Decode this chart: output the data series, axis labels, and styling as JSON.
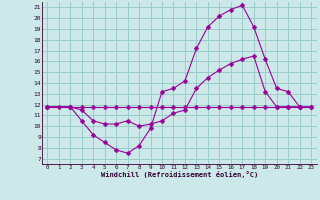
{
  "xlabel": "Windchill (Refroidissement éolien,°C)",
  "bg_color": "#cce8e8",
  "line_color": "#990099",
  "grid_color": "#99cccc",
  "xlim": [
    -0.5,
    23.5
  ],
  "ylim": [
    6.5,
    21.5
  ],
  "yticks": [
    7,
    8,
    9,
    10,
    11,
    12,
    13,
    14,
    15,
    16,
    17,
    18,
    19,
    20,
    21
  ],
  "xticks": [
    0,
    1,
    2,
    3,
    4,
    5,
    6,
    7,
    8,
    9,
    10,
    11,
    12,
    13,
    14,
    15,
    16,
    17,
    18,
    19,
    20,
    21,
    22,
    23
  ],
  "line1_x": [
    0,
    1,
    2,
    3,
    4,
    5,
    6,
    7,
    8,
    9,
    10,
    11,
    12,
    13,
    14,
    15,
    16,
    17,
    18,
    19,
    20,
    21,
    22,
    23
  ],
  "line1_y": [
    11.8,
    11.8,
    11.8,
    11.8,
    11.8,
    11.8,
    11.8,
    11.8,
    11.8,
    11.8,
    11.8,
    11.8,
    11.8,
    11.8,
    11.8,
    11.8,
    11.8,
    11.8,
    11.8,
    11.8,
    11.8,
    11.8,
    11.8,
    11.8
  ],
  "line2_x": [
    0,
    2,
    3,
    4,
    5,
    6,
    7,
    8,
    9,
    10,
    11,
    12,
    13,
    14,
    15,
    16,
    17,
    18,
    19,
    20,
    21,
    22
  ],
  "line2_y": [
    11.8,
    11.8,
    10.5,
    9.2,
    8.5,
    7.8,
    7.5,
    8.2,
    9.8,
    13.2,
    13.5,
    14.2,
    17.2,
    19.2,
    20.2,
    20.8,
    21.2,
    19.2,
    16.2,
    13.5,
    13.2,
    11.8
  ],
  "line3_x": [
    0,
    2,
    3,
    4,
    5,
    6,
    7,
    8,
    9,
    10,
    11,
    12,
    13,
    14,
    15,
    16,
    17,
    18,
    19,
    20,
    21,
    22,
    23
  ],
  "line3_y": [
    11.8,
    11.8,
    11.5,
    10.5,
    10.2,
    10.2,
    10.5,
    10.0,
    10.2,
    10.5,
    11.2,
    11.5,
    13.5,
    14.5,
    15.2,
    15.8,
    16.2,
    16.5,
    13.2,
    11.8,
    11.8,
    11.8,
    11.8
  ]
}
